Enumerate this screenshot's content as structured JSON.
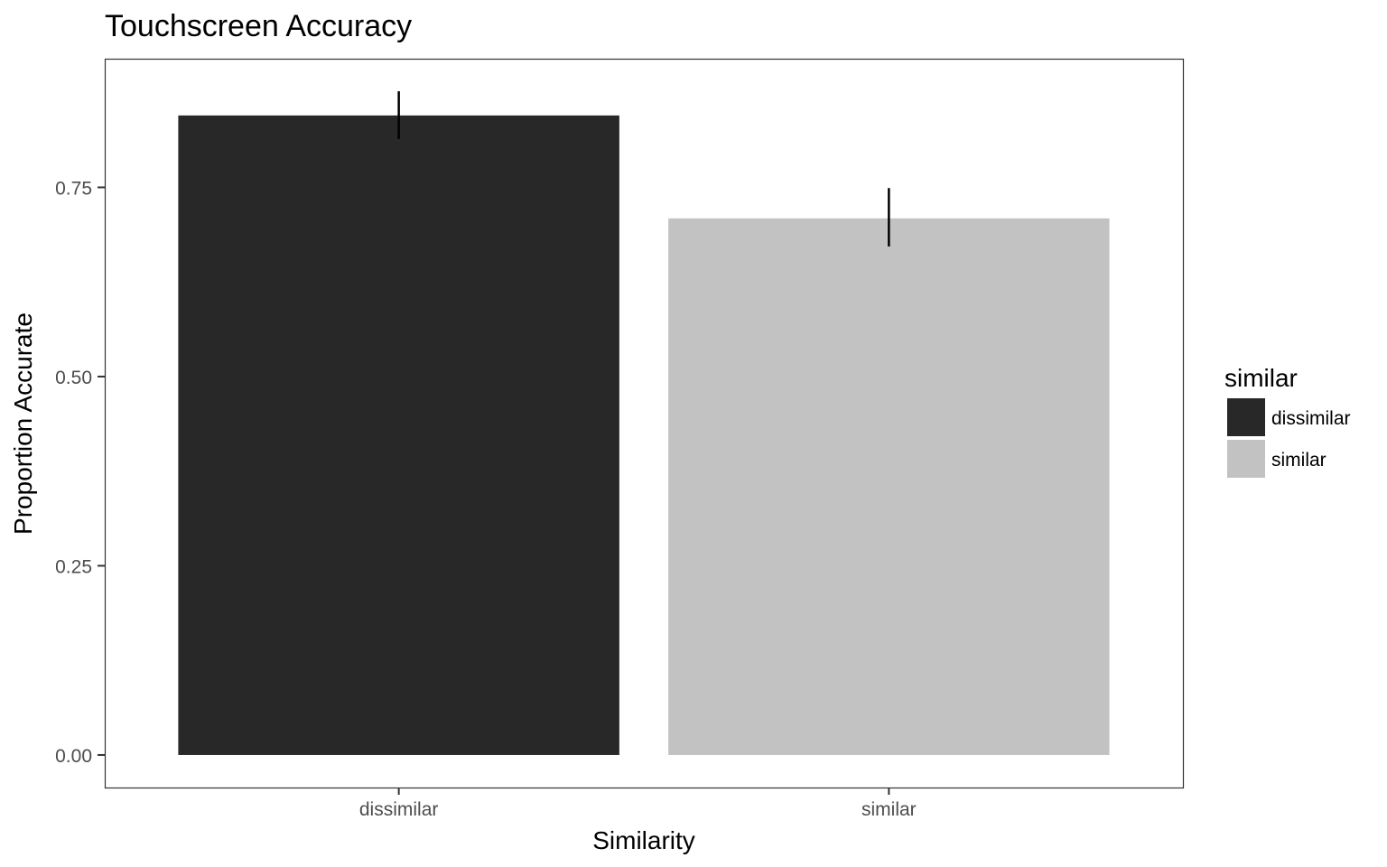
{
  "chart_data": {
    "type": "bar",
    "title": "Touchscreen Accuracy",
    "xlabel": "Similarity",
    "ylabel": "Proportion Accurate",
    "categories": [
      "dissimilar",
      "similar"
    ],
    "values": [
      0.845,
      0.709
    ],
    "error_low": [
      0.814,
      0.672
    ],
    "error_high": [
      0.877,
      0.749
    ],
    "ylim": [
      -0.043,
      0.92
    ],
    "yticks": [
      0.0,
      0.25,
      0.5,
      0.75
    ],
    "ytick_labels": [
      "0.00",
      "0.25",
      "0.50",
      "0.75"
    ],
    "grid": false,
    "legend": {
      "title": "similar",
      "position": "right",
      "entries": [
        "dissimilar",
        "similar"
      ]
    },
    "colors": {
      "dissimilar": "#282828",
      "similar": "#c2c2c2",
      "error_bar": "#000000",
      "panel_border": "#333333"
    }
  }
}
